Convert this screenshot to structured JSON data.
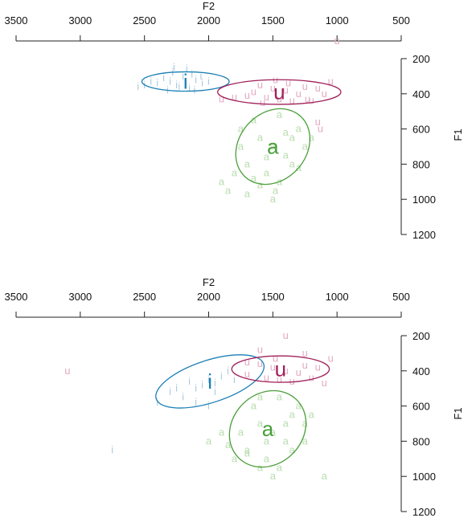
{
  "chart_data": [
    {
      "type": "scatter",
      "xlabel": "F2",
      "ylabel": "F1",
      "xlim": [
        3500,
        500
      ],
      "ylim": [
        1200,
        100
      ],
      "x_ticks": [
        "3500",
        "3000",
        "2500",
        "2000",
        "1500",
        "1000",
        "500"
      ],
      "y_ticks": [
        "200",
        "400",
        "600",
        "800",
        "1000",
        "1200"
      ],
      "x_tick_values": [
        3500,
        3000,
        2500,
        2000,
        1500,
        1000,
        500
      ],
      "y_tick_values": [
        200,
        400,
        600,
        800,
        1000,
        1200
      ],
      "axis_position": {
        "x": "top",
        "y": "right"
      },
      "grid": false,
      "series": [
        {
          "label": "i",
          "color": "#1a7fb5",
          "token_color": "#a9cbe2",
          "centroid": [
            2180,
            330
          ],
          "ellipse": {
            "center": [
              2180,
              330
            ],
            "rx_hz": 340,
            "ry_hz": 55,
            "angle_deg": 0
          },
          "points": [
            [
              2300,
              330
            ],
            [
              2250,
              350
            ],
            [
              2200,
              300
            ],
            [
              2100,
              320
            ],
            [
              2050,
              340
            ],
            [
              2350,
              310
            ],
            [
              2150,
              370
            ],
            [
              2000,
              330
            ],
            [
              2280,
              280
            ],
            [
              2400,
              340
            ],
            [
              2320,
              380
            ],
            [
              2230,
              360
            ],
            [
              2060,
              300
            ],
            [
              2130,
              290
            ],
            [
              2550,
              360
            ],
            [
              2500,
              350
            ],
            [
              2450,
              330
            ],
            [
              2170,
              260
            ],
            [
              2110,
              380
            ],
            [
              2270,
              250
            ]
          ]
        },
        {
          "label": "u",
          "color": "#a0205a",
          "token_color": "#e2aac3",
          "centroid": [
            1450,
            390
          ],
          "ellipse": {
            "center": [
              1450,
              390
            ],
            "rx_hz": 480,
            "ry_hz": 70,
            "angle_deg": 0
          },
          "points": [
            [
              1600,
              350
            ],
            [
              1500,
              370
            ],
            [
              1400,
              380
            ],
            [
              1300,
              400
            ],
            [
              1700,
              410
            ],
            [
              1550,
              420
            ],
            [
              1450,
              430
            ],
            [
              1350,
              440
            ],
            [
              1250,
              360
            ],
            [
              1150,
              370
            ],
            [
              1050,
              330
            ],
            [
              1100,
              400
            ],
            [
              1650,
              390
            ],
            [
              1800,
              420
            ],
            [
              1900,
              430
            ],
            [
              1000,
              100
            ],
            [
              1200,
              440
            ],
            [
              1480,
              320
            ],
            [
              1380,
              340
            ],
            [
              1580,
              450
            ],
            [
              1230,
              430
            ],
            [
              1150,
              560
            ],
            [
              1130,
              600
            ]
          ]
        },
        {
          "label": "a",
          "color": "#4a9e3a",
          "token_color": "#b9dcae",
          "centroid": [
            1500,
            700
          ],
          "ellipse": {
            "center": [
              1500,
              700
            ],
            "rx_hz": 320,
            "ry_hz": 190,
            "angle_deg": -48
          },
          "points": [
            [
              1600,
              650
            ],
            [
              1500,
              700
            ],
            [
              1400,
              750
            ],
            [
              1700,
              800
            ],
            [
              1550,
              850
            ],
            [
              1450,
              900
            ],
            [
              1350,
              650
            ],
            [
              1300,
              600
            ],
            [
              1650,
              550
            ],
            [
              1750,
              700
            ],
            [
              1800,
              850
            ],
            [
              1850,
              950
            ],
            [
              1900,
              900
            ],
            [
              1250,
              700
            ],
            [
              1200,
              650
            ],
            [
              1500,
              1000
            ],
            [
              1600,
              920
            ],
            [
              1700,
              970
            ],
            [
              1450,
              520
            ],
            [
              1350,
              800
            ],
            [
              1550,
              760
            ],
            [
              1400,
              620
            ],
            [
              1650,
              880
            ],
            [
              1480,
              950
            ],
            [
              1300,
              820
            ],
            [
              1750,
              600
            ]
          ]
        }
      ]
    },
    {
      "type": "scatter",
      "xlabel": "F2",
      "ylabel": "F1",
      "xlim": [
        3500,
        500
      ],
      "ylim": [
        1200,
        100
      ],
      "x_ticks": [
        "3500",
        "3000",
        "2500",
        "2000",
        "1500",
        "1000",
        "500"
      ],
      "y_ticks": [
        "200",
        "400",
        "600",
        "800",
        "1000",
        "1200"
      ],
      "x_tick_values": [
        3500,
        3000,
        2500,
        2000,
        1500,
        1000,
        500
      ],
      "y_tick_values": [
        200,
        400,
        600,
        800,
        1000,
        1200
      ],
      "axis_position": {
        "x": "top",
        "y": "right"
      },
      "grid": false,
      "series": [
        {
          "label": "i",
          "color": "#1a7fb5",
          "token_color": "#a9cbe2",
          "centroid": [
            1990,
            460
          ],
          "ellipse": {
            "center": [
              1990,
              460
            ],
            "rx_hz": 440,
            "ry_hz": 120,
            "angle_deg": -18
          },
          "points": [
            [
              2100,
              500
            ],
            [
              2000,
              450
            ],
            [
              1900,
              430
            ],
            [
              2200,
              550
            ],
            [
              2050,
              480
            ],
            [
              1950,
              520
            ],
            [
              2150,
              460
            ],
            [
              1850,
              400
            ],
            [
              2250,
              500
            ],
            [
              2300,
              520
            ],
            [
              1800,
              450
            ],
            [
              2000,
              600
            ],
            [
              2100,
              580
            ],
            [
              2750,
              850
            ],
            [
              2400,
              580
            ],
            [
              1950,
              470
            ]
          ]
        },
        {
          "label": "u",
          "color": "#a0205a",
          "token_color": "#e2aac3",
          "centroid": [
            1440,
            390
          ],
          "ellipse": {
            "center": [
              1440,
              390
            ],
            "rx_hz": 380,
            "ry_hz": 75,
            "angle_deg": 0
          },
          "points": [
            [
              1600,
              360
            ],
            [
              1500,
              380
            ],
            [
              1400,
              400
            ],
            [
              1300,
              410
            ],
            [
              1700,
              420
            ],
            [
              1550,
              440
            ],
            [
              1450,
              450
            ],
            [
              1350,
              460
            ],
            [
              1250,
              370
            ],
            [
              1150,
              380
            ],
            [
              1400,
              200
            ],
            [
              1600,
              280
            ],
            [
              1200,
              440
            ],
            [
              3100,
              400
            ],
            [
              1700,
              350
            ],
            [
              1480,
              330
            ],
            [
              1100,
              470
            ],
            [
              1050,
              330
            ],
            [
              1250,
              300
            ]
          ]
        },
        {
          "label": "a",
          "color": "#4a9e3a",
          "token_color": "#b9dcae",
          "centroid": [
            1540,
            730
          ],
          "ellipse": {
            "center": [
              1540,
              730
            ],
            "rx_hz": 320,
            "ry_hz": 200,
            "angle_deg": -45
          },
          "points": [
            [
              1600,
              700
            ],
            [
              1500,
              750
            ],
            [
              1400,
              800
            ],
            [
              1700,
              850
            ],
            [
              1550,
              900
            ],
            [
              1450,
              950
            ],
            [
              1350,
              650
            ],
            [
              1300,
              600
            ],
            [
              1650,
              600
            ],
            [
              1750,
              750
            ],
            [
              1800,
              900
            ],
            [
              1850,
              820
            ],
            [
              1250,
              700
            ],
            [
              1200,
              650
            ],
            [
              1500,
              1000
            ],
            [
              1600,
              950
            ],
            [
              1700,
              870
            ],
            [
              1450,
              550
            ],
            [
              1350,
              850
            ],
            [
              2000,
              800
            ],
            [
              1550,
              800
            ],
            [
              1250,
              800
            ],
            [
              1100,
              1000
            ],
            [
              1900,
              750
            ],
            [
              1400,
              700
            ],
            [
              1600,
              550
            ]
          ]
        }
      ]
    }
  ]
}
